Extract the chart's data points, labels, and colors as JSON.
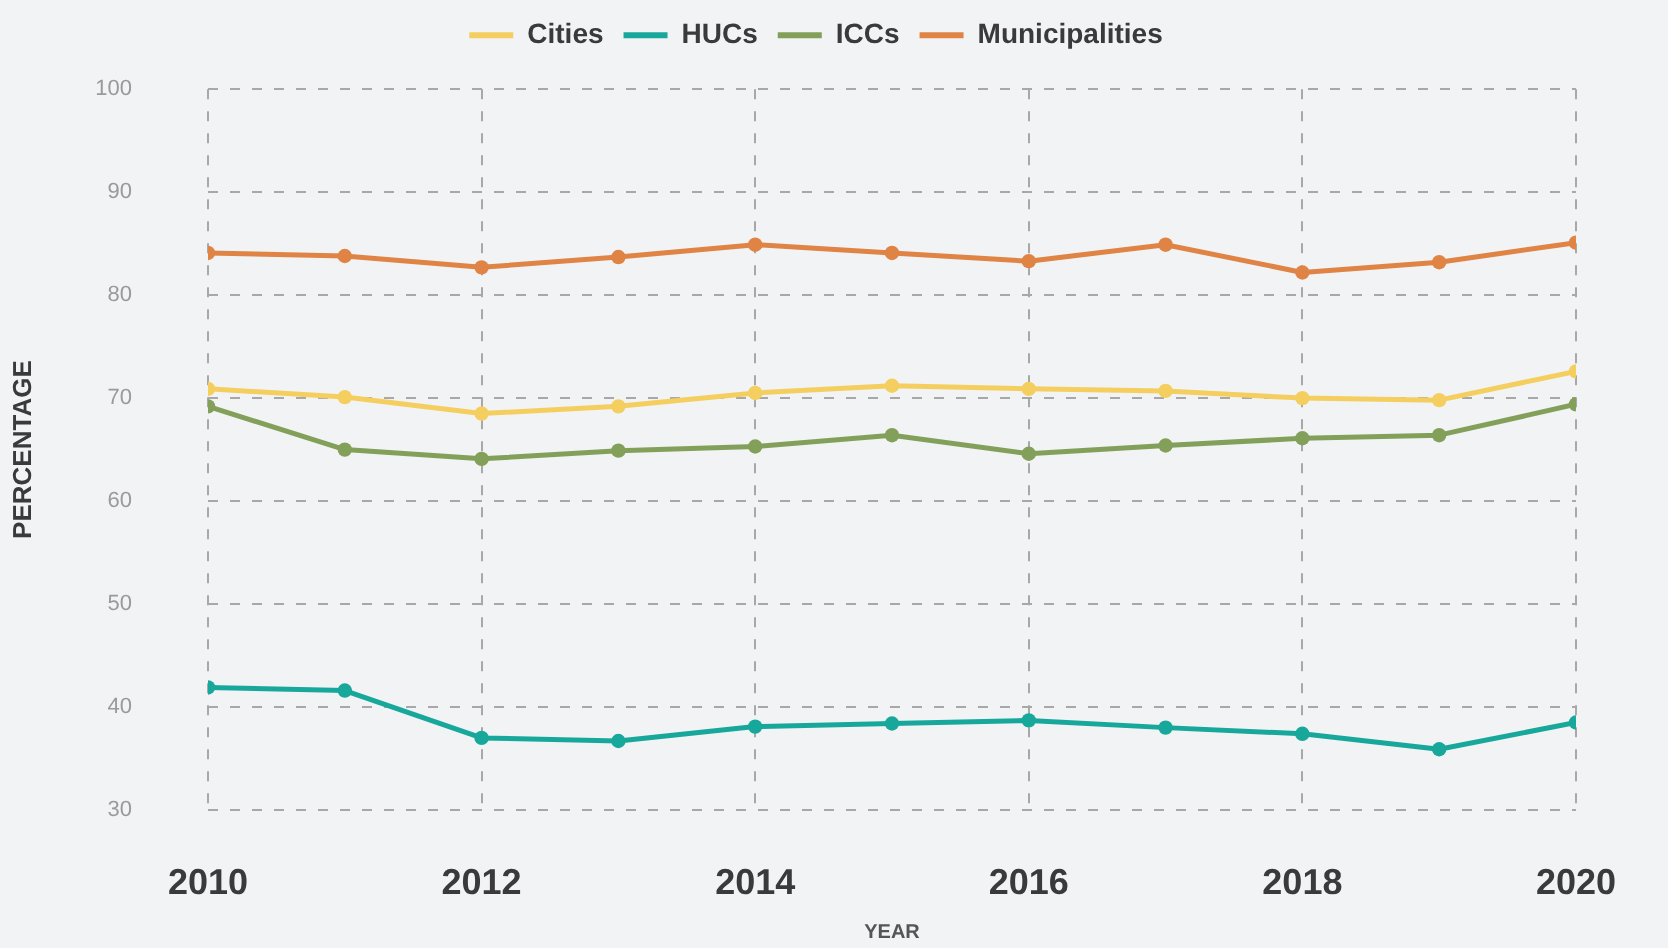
{
  "chart_data": {
    "type": "line",
    "xlabel": "YEAR",
    "ylabel": "PERCENTAGE",
    "x": [
      2010,
      2011,
      2012,
      2013,
      2014,
      2015,
      2016,
      2017,
      2018,
      2019,
      2020
    ],
    "xlim": [
      2010,
      2020
    ],
    "xticks": [
      2010,
      2012,
      2014,
      2016,
      2018,
      2020
    ],
    "ylim": [
      30,
      100
    ],
    "yticks": [
      30,
      40,
      50,
      60,
      70,
      80,
      90,
      100
    ],
    "grid": true,
    "legend": "top",
    "marker": "circle",
    "line_style": "solid",
    "series": [
      {
        "name": "Cities",
        "color": "#f4cf5f",
        "values": [
          70.9,
          70.1,
          68.5,
          69.2,
          70.5,
          71.2,
          70.9,
          70.7,
          70.0,
          69.8,
          72.6
        ]
      },
      {
        "name": "HUCs",
        "color": "#17a89b",
        "values": [
          41.9,
          41.6,
          37.0,
          36.7,
          38.1,
          38.4,
          38.7,
          38.0,
          37.4,
          35.9,
          38.5
        ]
      },
      {
        "name": "ICCs",
        "color": "#83a05a",
        "values": [
          69.2,
          65.0,
          64.1,
          64.9,
          65.3,
          66.4,
          64.6,
          65.4,
          66.1,
          66.4,
          69.4
        ]
      },
      {
        "name": "Municipalities",
        "color": "#df8445",
        "values": [
          84.1,
          83.8,
          82.7,
          83.7,
          84.9,
          84.1,
          83.3,
          84.9,
          82.2,
          83.2,
          85.1
        ]
      }
    ]
  }
}
